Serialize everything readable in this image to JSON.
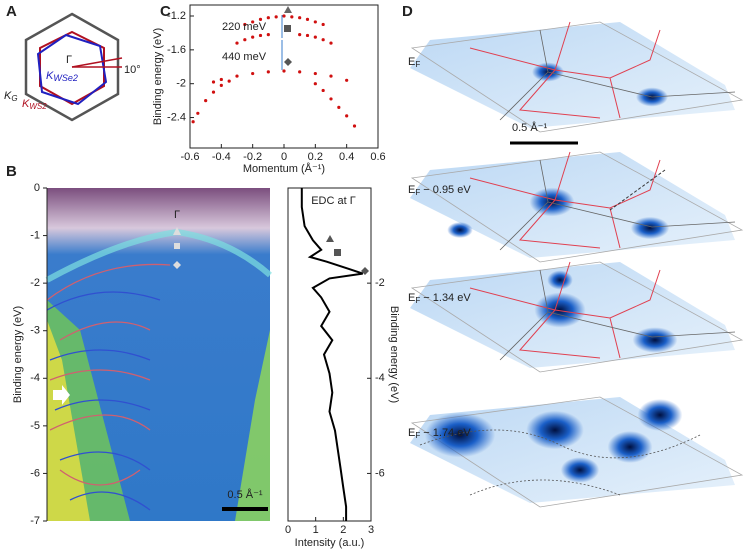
{
  "panels": {
    "A": {
      "label": "A",
      "gamma": "Γ",
      "angle": "10°",
      "k_wse2": {
        "main": "K",
        "sub": "WSe2"
      },
      "k_g": {
        "main": "K",
        "sub": "G"
      },
      "k_ws2": {
        "main": "K",
        "sub": "WS2"
      }
    },
    "C": {
      "label": "C",
      "xlabel": "Momentum (Å⁻¹)",
      "ylabel": "Binding energy (eV)",
      "xlim": [
        -0.6,
        0.6
      ],
      "xticks": [
        -0.6,
        -0.4,
        -0.2,
        0,
        0.2,
        0.4,
        0.6
      ],
      "ylim": [
        -2.76,
        -1.07
      ],
      "yticks": [
        -1.2,
        -1.6,
        -2.0,
        -2.4
      ],
      "annotations": [
        "220 meV",
        "440 meV"
      ],
      "bands": [
        {
          "x": [
            -0.25,
            -0.2,
            -0.15,
            -0.1,
            -0.05,
            0,
            0.05,
            0.1,
            0.15,
            0.2,
            0.25
          ],
          "y": [
            -1.3,
            -1.27,
            -1.24,
            -1.22,
            -1.21,
            -1.2,
            -1.21,
            -1.22,
            -1.24,
            -1.27,
            -1.3
          ]
        },
        {
          "x": [
            -0.3,
            -0.25,
            -0.2,
            -0.15,
            -0.1,
            0.1,
            0.15,
            0.2,
            0.25,
            0.3
          ],
          "y": [
            -1.52,
            -1.48,
            -1.45,
            -1.43,
            -1.42,
            -1.42,
            -1.43,
            -1.45,
            -1.48,
            -1.52
          ]
        },
        {
          "x": [
            -0.45,
            -0.4,
            -0.3,
            -0.2,
            -0.1,
            0,
            0.1,
            0.2,
            0.3,
            0.4
          ],
          "y": [
            -1.98,
            -1.95,
            -1.91,
            -1.88,
            -1.86,
            -1.85,
            -1.86,
            -1.88,
            -1.91,
            -1.96
          ]
        },
        {
          "x": [
            -0.58,
            -0.55,
            -0.5,
            -0.45,
            -0.4,
            -0.35,
            0.2,
            0.25,
            0.3,
            0.35,
            0.4,
            0.45
          ],
          "y": [
            -2.45,
            -2.35,
            -2.2,
            -2.1,
            -2.02,
            -1.97,
            -2.0,
            -2.08,
            -2.18,
            -2.28,
            -2.38,
            -2.5
          ]
        }
      ]
    },
    "B": {
      "label": "B",
      "ylabel": "Binding energy (eV)",
      "ylim": [
        0,
        -7
      ],
      "yticks": [
        0,
        -1,
        -2,
        -3,
        -4,
        -5,
        -6,
        -7
      ],
      "gamma": "Γ",
      "scale": "0.5 Å⁻¹"
    },
    "EDC": {
      "title": "EDC at Γ",
      "xlabel": "Intensity (a.u.)",
      "ylabel": "Binding energy (eV)",
      "xlim": [
        0,
        3
      ],
      "xticks": [
        0,
        1,
        2,
        3
      ],
      "ylim": [
        0,
        -7
      ],
      "yticks": [
        -2,
        -4,
        -6
      ],
      "energy": [
        0,
        -0.4,
        -0.8,
        -1.1,
        -1.3,
        -1.45,
        -1.55,
        -1.7,
        -1.8,
        -1.9,
        -2.1,
        -2.3,
        -2.6,
        -2.9,
        -3.2,
        -3.5,
        -3.9,
        -4.3,
        -4.7,
        -5.1,
        -5.5,
        -5.9,
        -6.3,
        -6.7,
        -7
      ],
      "intensity": [
        0.5,
        0.5,
        0.6,
        0.9,
        1.2,
        0.8,
        1.4,
        2.2,
        2.7,
        1.5,
        0.9,
        1.2,
        1.5,
        1.2,
        1.6,
        1.3,
        1.5,
        1.6,
        1.5,
        1.7,
        1.8,
        1.9,
        2.0,
        2.1,
        2.1
      ]
    },
    "D": {
      "label": "D",
      "scale": "0.5 Å⁻¹",
      "levels": [
        {
          "main": "E",
          "sub": "F",
          "rest": ""
        },
        {
          "main": "E",
          "sub": "F",
          "rest": " − 0.95 eV"
        },
        {
          "main": "E",
          "sub": "F",
          "rest": " − 1.34 eV"
        },
        {
          "main": "E",
          "sub": "F",
          "rest": " − 1.74 eV"
        }
      ]
    }
  }
}
